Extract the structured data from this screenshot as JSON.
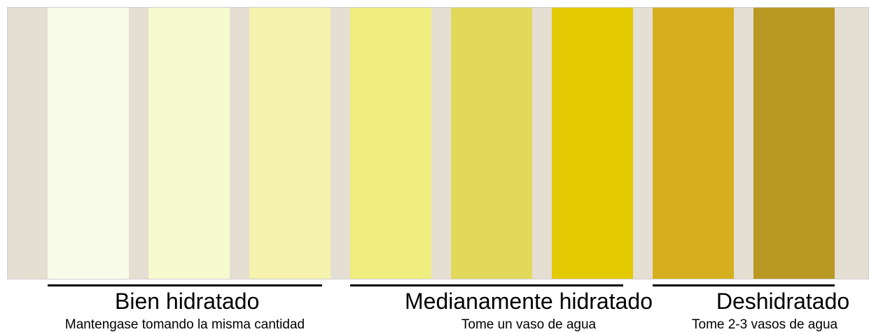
{
  "swatches": [
    {
      "color": "#f9fbe9"
    },
    {
      "color": "#f7f9ce"
    },
    {
      "color": "#f5f3ad"
    },
    {
      "color": "#eeed7e"
    },
    {
      "color": "#e2d95b"
    },
    {
      "color": "#e3ca03"
    },
    {
      "color": "#d6af1f"
    },
    {
      "color": "#b99824"
    }
  ],
  "panel_color": "#e5ded3",
  "groups": [
    {
      "title": "Bien hidratado",
      "description": "Mantengase tomando la misma cantidad"
    },
    {
      "title": "Medianamente hidratado",
      "description": "Tome un vaso de agua"
    },
    {
      "title": "Deshidratado",
      "description": "Tome 2-3 vasos de agua"
    }
  ]
}
